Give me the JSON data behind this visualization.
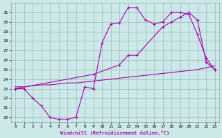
{
  "xlabel": "Windchill (Refroidissement éolien,°C)",
  "bg_color": "#cce8e8",
  "line_color": "#aa00aa",
  "grid_color": "#99bbbb",
  "xlim": [
    -0.5,
    23.5
  ],
  "ylim": [
    19.5,
    32.0
  ],
  "xticks": [
    0,
    1,
    2,
    3,
    4,
    5,
    6,
    7,
    8,
    9,
    10,
    11,
    12,
    13,
    14,
    15,
    16,
    17,
    18,
    19,
    20,
    21,
    22,
    23
  ],
  "yticks": [
    20,
    21,
    22,
    23,
    24,
    25,
    26,
    27,
    28,
    29,
    30,
    31
  ],
  "line1_x": [
    0,
    1,
    2,
    3,
    4,
    5,
    6,
    7,
    8,
    9,
    10,
    11,
    12,
    13,
    14,
    15,
    16,
    17,
    18,
    19,
    20,
    21,
    22,
    23
  ],
  "line1_y": [
    23.0,
    23.0,
    22.0,
    21.2,
    20.0,
    19.8,
    19.8,
    20.0,
    23.2,
    23.0,
    27.8,
    29.8,
    29.9,
    31.5,
    31.5,
    30.2,
    29.8,
    30.0,
    31.0,
    31.0,
    30.8,
    28.7,
    26.2,
    25.0
  ],
  "line2_x": [
    0,
    9,
    12,
    13,
    14,
    17,
    18,
    19,
    20,
    21,
    22,
    23
  ],
  "line2_y": [
    23.0,
    24.5,
    25.5,
    26.5,
    26.5,
    29.5,
    30.0,
    30.5,
    31.0,
    30.2,
    25.8,
    25.0
  ],
  "line3_x": [
    0,
    1,
    2,
    3,
    4,
    5,
    6,
    7,
    8,
    9,
    10,
    11,
    12,
    13,
    14,
    15,
    16,
    17,
    18,
    19,
    20,
    21,
    22,
    23
  ],
  "line3_y": [
    23.2,
    23.2,
    23.3,
    23.4,
    23.4,
    23.5,
    23.6,
    23.6,
    23.7,
    23.8,
    23.9,
    24.0,
    24.1,
    24.2,
    24.3,
    24.4,
    24.5,
    24.6,
    24.7,
    24.8,
    24.9,
    25.0,
    25.2,
    25.4
  ]
}
